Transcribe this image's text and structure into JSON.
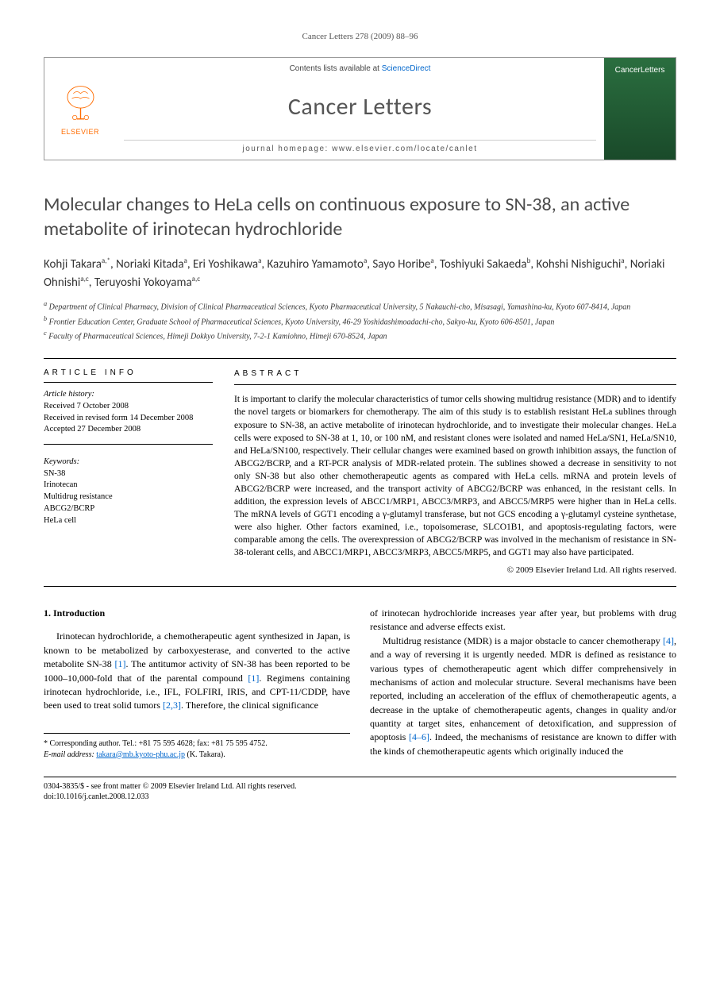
{
  "running_header": "Cancer Letters 278 (2009) 88–96",
  "box": {
    "contents_prefix": "Contents lists available at ",
    "contents_link": "ScienceDirect",
    "journal_name": "Cancer Letters",
    "homepage_prefix": "journal homepage: ",
    "homepage_url": "www.elsevier.com/locate/canlet",
    "publisher": "ELSEVIER",
    "cover_text": "CancerLetters"
  },
  "title": "Molecular changes to HeLa cells on continuous exposure to SN-38, an active metabolite of irinotecan hydrochloride",
  "authors_html": "Kohji Takara<sup>a,*</sup>, Noriaki Kitada<sup>a</sup>, Eri Yoshikawa<sup>a</sup>, Kazuhiro Yamamoto<sup>a</sup>, Sayo Horibe<sup>a</sup>, Toshiyuki Sakaeda<sup>b</sup>, Kohshi Nishiguchi<sup>a</sup>, Noriaki Ohnishi<sup>a,c</sup>, Teruyoshi Yokoyama<sup>a,c</sup>",
  "affiliations": [
    "<sup>a</sup> Department of Clinical Pharmacy, Division of Clinical Pharmaceutical Sciences, Kyoto Pharmaceutical University, 5 Nakauchi-cho, Misasagi, Yamashina-ku, Kyoto 607-8414, Japan",
    "<sup>b</sup> Frontier Education Center, Graduate School of Pharmaceutical Sciences, Kyoto University, 46-29 Yoshidashimoadachi-cho, Sakyo-ku, Kyoto 606-8501, Japan",
    "<sup>c</sup> Faculty of Pharmaceutical Sciences, Himeji Dokkyo University, 7-2-1 Kamiohno, Himeji 670-8524, Japan"
  ],
  "info_heading": "ARTICLE INFO",
  "abstract_heading": "ABSTRACT",
  "history": {
    "label": "Article history:",
    "received": "Received 7 October 2008",
    "revised": "Received in revised form 14 December 2008",
    "accepted": "Accepted 27 December 2008"
  },
  "keywords": {
    "label": "Keywords:",
    "items": [
      "SN-38",
      "Irinotecan",
      "Multidrug resistance",
      "ABCG2/BCRP",
      "HeLa cell"
    ]
  },
  "abstract": "It is important to clarify the molecular characteristics of tumor cells showing multidrug resistance (MDR) and to identify the novel targets or biomarkers for chemotherapy. The aim of this study is to establish resistant HeLa sublines through exposure to SN-38, an active metabolite of irinotecan hydrochloride, and to investigate their molecular changes. HeLa cells were exposed to SN-38 at 1, 10, or 100 nM, and resistant clones were isolated and named HeLa/SN1, HeLa/SN10, and HeLa/SN100, respectively. Their cellular changes were examined based on growth inhibition assays, the function of ABCG2/BCRP, and a RT-PCR analysis of MDR-related protein. The sublines showed a decrease in sensitivity to not only SN-38 but also other chemotherapeutic agents as compared with HeLa cells. mRNA and protein levels of ABCG2/BCRP were increased, and the transport activity of ABCG2/BCRP was enhanced, in the resistant cells. In addition, the expression levels of ABCC1/MRP1, ABCC3/MRP3, and ABCC5/MRP5 were higher than in HeLa cells. The mRNA levels of GGT1 encoding a γ-glutamyl transferase, but not GCS encoding a γ-glutamyl cysteine synthetase, were also higher. Other factors examined, i.e., topoisomerase, SLCO1B1, and apoptosis-regulating factors, were comparable among the cells. The overexpression of ABCG2/BCRP was involved in the mechanism of resistance in SN-38-tolerant cells, and ABCC1/MRP1, ABCC3/MRP3, ABCC5/MRP5, and GGT1 may also have participated.",
  "copyright": "© 2009 Elsevier Ireland Ltd. All rights reserved.",
  "section1_heading": "1. Introduction",
  "body": {
    "col1_p1": "Irinotecan hydrochloride, a chemotherapeutic agent synthesized in Japan, is known to be metabolized by carboxyesterase, and converted to the active metabolite SN-38 <span class=\"ref-link\">[1]</span>. The antitumor activity of SN-38 has been reported to be 1000–10,000-fold that of the parental compound <span class=\"ref-link\">[1]</span>. Regimens containing irinotecan hydrochloride, i.e., IFL, FOLFIRI, IRIS, and CPT-11/CDDP, have been used to treat solid tumors <span class=\"ref-link\">[2,3]</span>. Therefore, the clinical significance",
    "col2_p1": "of irinotecan hydrochloride increases year after year, but problems with drug resistance and adverse effects exist.",
    "col2_p2": "Multidrug resistance (MDR) is a major obstacle to cancer chemotherapy <span class=\"ref-link\">[4]</span>, and a way of reversing it is urgently needed. MDR is defined as resistance to various types of chemotherapeutic agent which differ comprehensively in mechanisms of action and molecular structure. Several mechanisms have been reported, including an acceleration of the efflux of chemotherapeutic agents, a decrease in the uptake of chemotherapeutic agents, changes in quality and/or quantity at target sites, enhancement of detoxification, and suppression of apoptosis <span class=\"ref-link\">[4–6]</span>. Indeed, the mechanisms of resistance are known to differ with the kinds of chemotherapeutic agents which originally induced the"
  },
  "corresponding": {
    "line1": "* Corresponding author. Tel.: +81 75 595 4628; fax: +81 75 595 4752.",
    "email_label": "E-mail address: ",
    "email": "takara@mb.kyoto-phu.ac.jp",
    "email_suffix": " (K. Takara)."
  },
  "footer": {
    "line1": "0304-3835/$ - see front matter © 2009 Elsevier Ireland Ltd. All rights reserved.",
    "line2": "doi:10.1016/j.canlet.2008.12.033"
  },
  "colors": {
    "elsevier_orange": "#ff6c00",
    "link_blue": "#0066cc",
    "title_gray": "#4a4a4a",
    "cover_green": "#2a6e3f"
  }
}
